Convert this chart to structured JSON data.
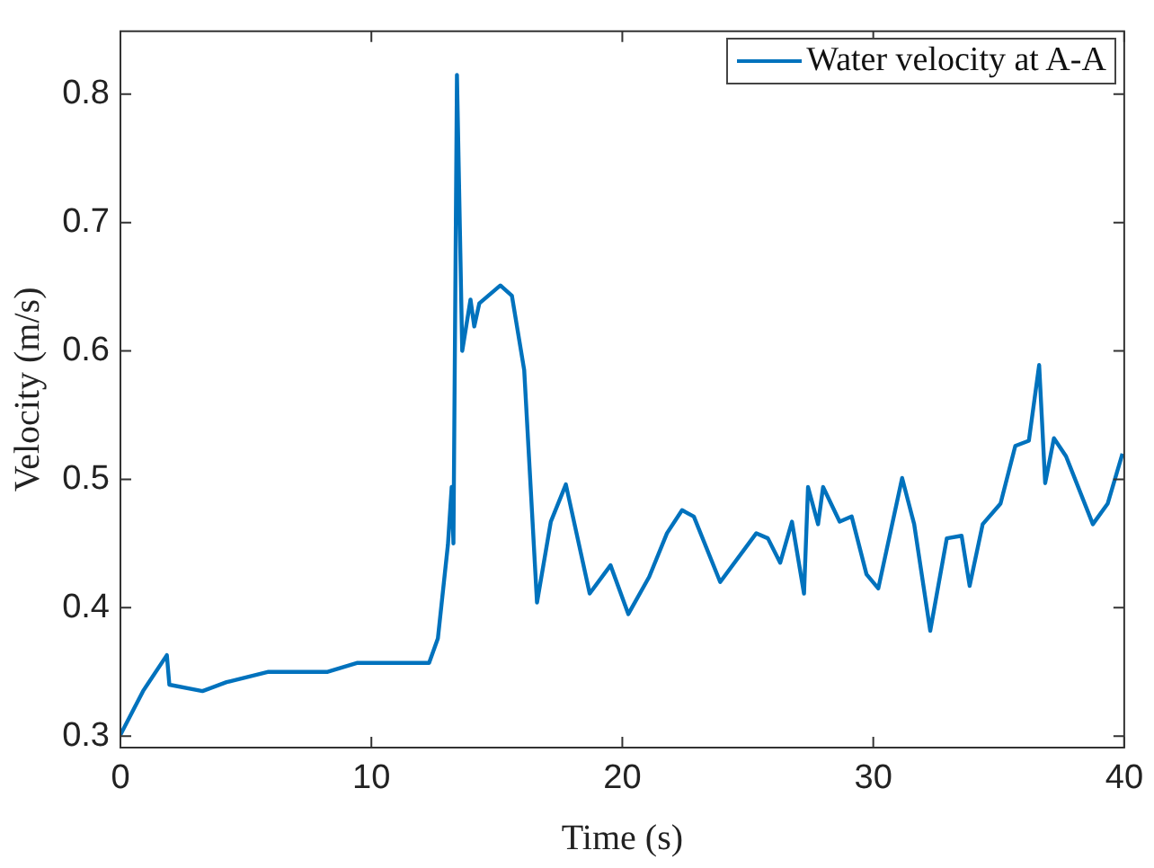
{
  "chart_data": {
    "type": "line",
    "xlabel": "Time (s)",
    "ylabel": "Velocity (m/s)",
    "xlim": [
      0,
      40
    ],
    "ylim": [
      0.291,
      0.849
    ],
    "xticks": [
      0,
      10,
      20,
      30,
      40
    ],
    "yticks": [
      0.3,
      0.4,
      0.5,
      0.6,
      0.7,
      0.8
    ],
    "grid": false,
    "legend": "top right",
    "marker": "none",
    "line_style": "solid",
    "series": [
      {
        "name": "Water velocity at A-A",
        "color": "#0072bd",
        "x": [
          0,
          0.9,
          1.85,
          1.95,
          3.27,
          4.23,
          5.9,
          8.26,
          9.45,
          12.3,
          12.65,
          13.05,
          13.2,
          13.27,
          13.41,
          13.62,
          13.95,
          14.1,
          14.3,
          15.14,
          15.6,
          16.09,
          16.6,
          17.15,
          17.75,
          18.7,
          19.53,
          20.24,
          21.07,
          21.78,
          22.38,
          22.85,
          23.9,
          25.34,
          25.8,
          26.29,
          26.76,
          27.24,
          27.4,
          27.8,
          28.0,
          28.66,
          29.14,
          29.73,
          30.2,
          31.15,
          31.63,
          32.27,
          32.93,
          33.52,
          33.84,
          34.36,
          35.07,
          35.66,
          36.2,
          36.61,
          36.85,
          37.2,
          37.68,
          38.75,
          39.34,
          39.93
        ],
        "values": [
          0.301,
          0.335,
          0.363,
          0.34,
          0.335,
          0.342,
          0.35,
          0.35,
          0.357,
          0.357,
          0.376,
          0.449,
          0.494,
          0.45,
          0.815,
          0.6,
          0.64,
          0.619,
          0.637,
          0.651,
          0.643,
          0.585,
          0.404,
          0.467,
          0.496,
          0.411,
          0.433,
          0.395,
          0.424,
          0.458,
          0.476,
          0.471,
          0.42,
          0.458,
          0.454,
          0.435,
          0.467,
          0.411,
          0.494,
          0.465,
          0.494,
          0.467,
          0.471,
          0.426,
          0.415,
          0.501,
          0.465,
          0.382,
          0.454,
          0.456,
          0.417,
          0.465,
          0.481,
          0.526,
          0.53,
          0.589,
          0.497,
          0.532,
          0.518,
          0.465,
          0.481,
          0.52
        ]
      }
    ]
  }
}
